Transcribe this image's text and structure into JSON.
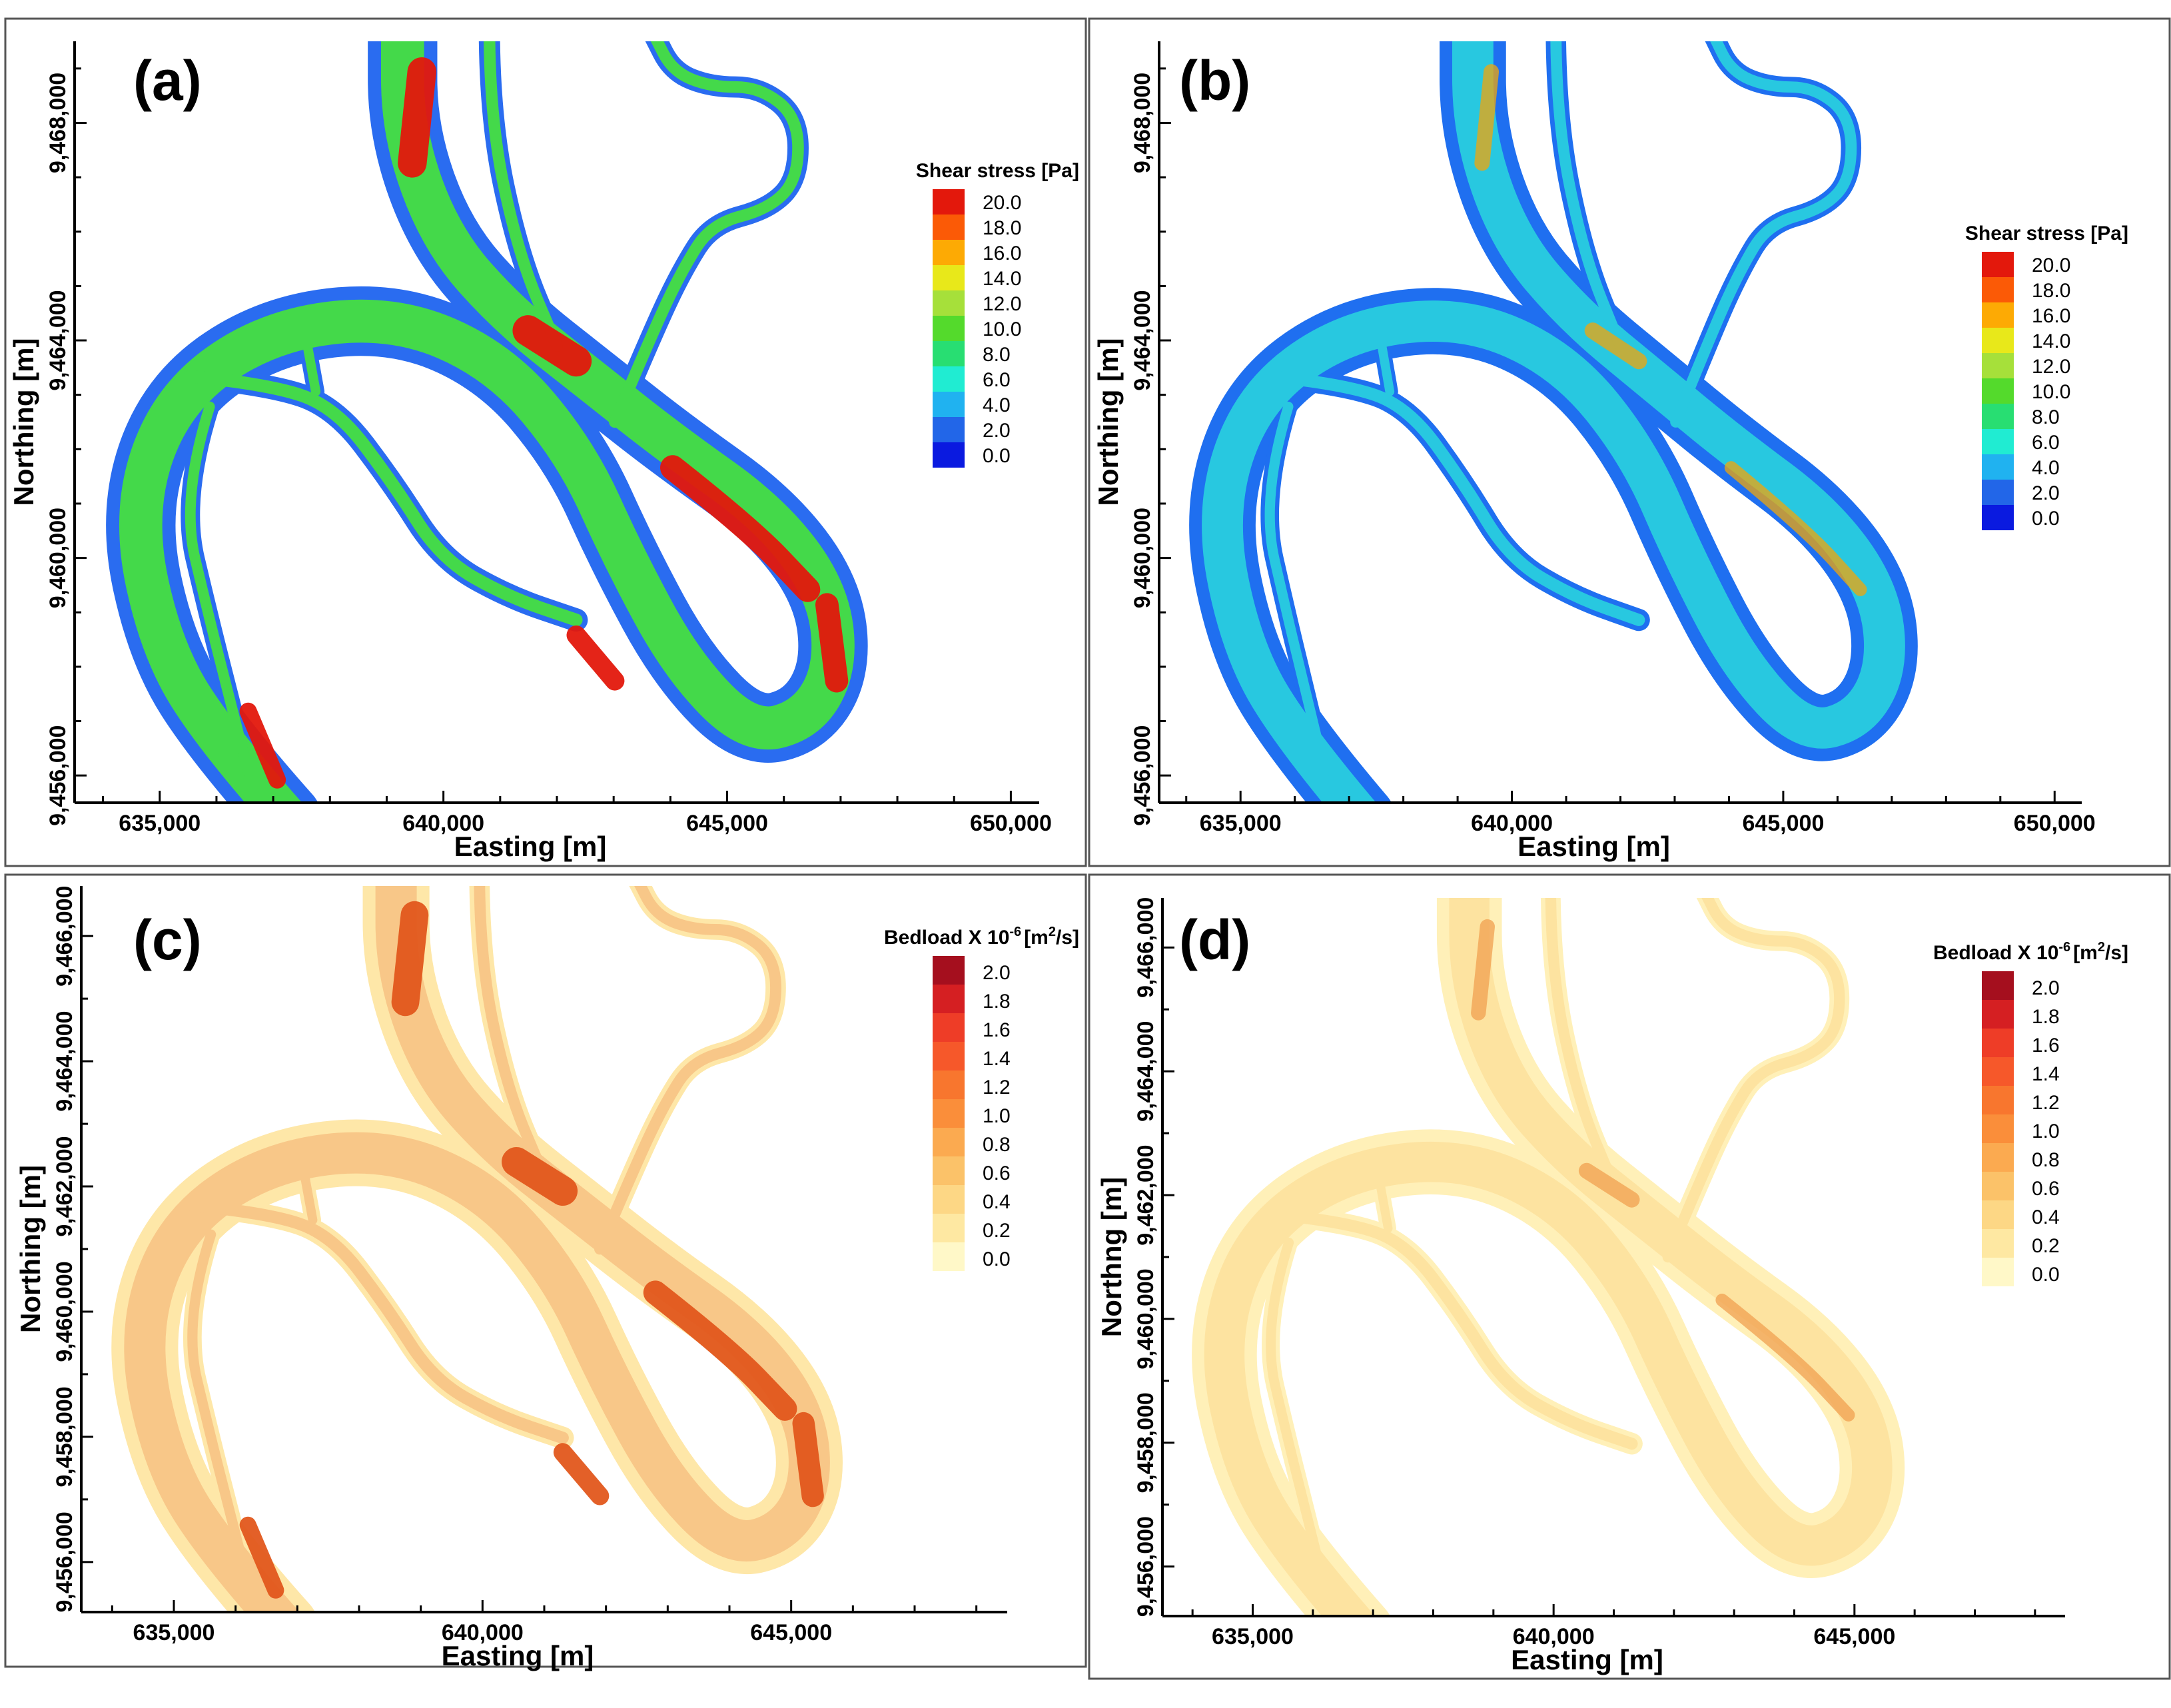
{
  "chart_data": [
    {
      "type": "heatmap",
      "panel_label": "(a)",
      "xlabel": "Easting [m]",
      "ylabel": "Northing [m]",
      "x_ticks": [
        "635,000",
        "640,000",
        "645,000",
        "650,000"
      ],
      "y_ticks": [
        "9,456,000",
        "9,460,000",
        "9,464,000",
        "9,468,000"
      ],
      "xlim": [
        633500,
        650500
      ],
      "ylim": [
        9455500,
        9469500
      ],
      "legend": {
        "title": "Shear stress [Pa]",
        "values": [
          "20.0",
          "18.0",
          "16.0",
          "14.0",
          "12.0",
          "10.0",
          "8.0",
          "6.0",
          "4.0",
          "2.0",
          "0.0"
        ],
        "colors": [
          "#e3180c",
          "#fb5a06",
          "#fdaa04",
          "#e8e81a",
          "#a6e03a",
          "#54da2c",
          "#28de72",
          "#20ecd2",
          "#20b2f0",
          "#2266e8",
          "#0a1ae0"
        ]
      },
      "field_intensity": "high",
      "main_color": "#44d94a",
      "edge_color": "#2a6cf0",
      "hot_color": "#e3180c"
    },
    {
      "type": "heatmap",
      "panel_label": "(b)",
      "xlabel": "Easting [m]",
      "ylabel": "Northing [m]",
      "x_ticks": [
        "635,000",
        "640,000",
        "645,000",
        "650,000"
      ],
      "y_ticks": [
        "9,456,000",
        "9,460,000",
        "9,464,000",
        "9,468,000"
      ],
      "xlim": [
        633500,
        650500
      ],
      "ylim": [
        9455500,
        9469500
      ],
      "legend": {
        "title": "Shear stress [Pa]",
        "values": [
          "20.0",
          "18.0",
          "16.0",
          "14.0",
          "12.0",
          "10.0",
          "8.0",
          "6.0",
          "4.0",
          "2.0",
          "0.0"
        ],
        "colors": [
          "#e3180c",
          "#fb5a06",
          "#fdaa04",
          "#e8e81a",
          "#a6e03a",
          "#54da2c",
          "#28de72",
          "#20ecd2",
          "#20b2f0",
          "#2266e8",
          "#0a1ae0"
        ]
      },
      "field_intensity": "low",
      "main_color": "#28c8e0",
      "edge_color": "#1f6ff0",
      "hot_color": "#f2a50a"
    },
    {
      "type": "heatmap",
      "panel_label": "(c)",
      "xlabel": "Easting [m]",
      "ylabel": "Northing [m]",
      "x_ticks": [
        "635,000",
        "640,000",
        "645,000"
      ],
      "y_ticks": [
        "9,456,000",
        "9,458,000",
        "9,460,000",
        "9,462,000",
        "9,464,000",
        "9,466,000"
      ],
      "xlim": [
        633500,
        648500
      ],
      "ylim": [
        9455200,
        9466800
      ],
      "legend": {
        "title": "Bedload X 10",
        "title_exp": "-6",
        "title_units": "[m",
        "title_units_exp": "2",
        "title_units_tail": "/s]",
        "values": [
          "2.0",
          "1.8",
          "1.6",
          "1.4",
          "1.2",
          "1.0",
          "0.8",
          "0.6",
          "0.4",
          "0.2",
          "0.0"
        ],
        "colors": [
          "#a50f1e",
          "#d51f22",
          "#ee3d27",
          "#f6582a",
          "#f8762e",
          "#fa8e3a",
          "#fbaa50",
          "#fbc269",
          "#fdd785",
          "#fee8a2",
          "#fff8c8"
        ]
      },
      "field_intensity": "high",
      "main_color": "#f8c788",
      "edge_color": "#fee7a8",
      "hot_color": "#e2571c"
    },
    {
      "type": "heatmap",
      "panel_label": "(d)",
      "xlabel": "Easting [m]",
      "ylabel": "Northng [m]",
      "x_ticks": [
        "635,000",
        "640,000",
        "645,000"
      ],
      "y_ticks": [
        "9,456,000",
        "9,458,000",
        "9,460,000",
        "9,462,000",
        "9,464,000",
        "9,466,000"
      ],
      "xlim": [
        633500,
        648500
      ],
      "ylim": [
        9455200,
        9466800
      ],
      "legend": {
        "title": "Bedload X 10",
        "title_exp": "-6",
        "title_units": "[m",
        "title_units_exp": "2",
        "title_units_tail": "/s]",
        "values": [
          "2.0",
          "1.8",
          "1.6",
          "1.4",
          "1.2",
          "1.0",
          "0.8",
          "0.6",
          "0.4",
          "0.2",
          "0.0"
        ],
        "colors": [
          "#a50f1e",
          "#d51f22",
          "#ee3d27",
          "#f6582a",
          "#f8762e",
          "#fa8e3a",
          "#fbaa50",
          "#fbc269",
          "#fdd785",
          "#fee8a2",
          "#fff8c8"
        ]
      },
      "field_intensity": "low",
      "main_color": "#fde3a0",
      "edge_color": "#fff0b8",
      "hot_color": "#f0a050"
    }
  ]
}
